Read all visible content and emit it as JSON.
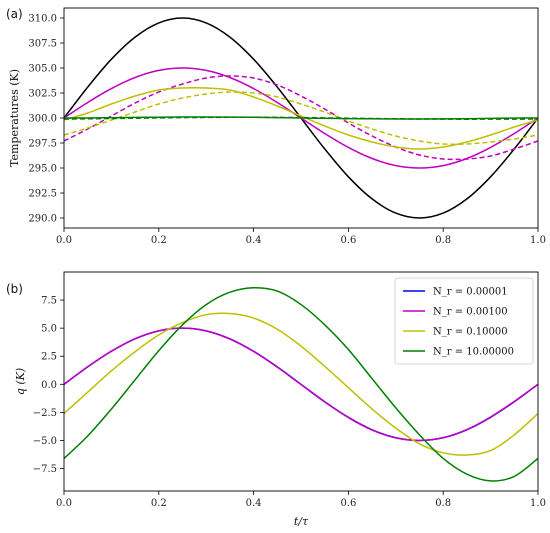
{
  "chart_data": [
    {
      "type": "line",
      "panel_label": "(a)",
      "title": "",
      "xlabel": "",
      "ylabel": "Temperatures (K)",
      "xlim": [
        0.0,
        1.0
      ],
      "ylim": [
        289.0,
        311.0
      ],
      "xticks": [
        "0.0",
        "0.2",
        "0.4",
        "0.6",
        "0.8",
        "1.0"
      ],
      "yticks": [
        "290.0",
        "292.5",
        "295.0",
        "297.5",
        "300.0",
        "302.5",
        "305.0",
        "307.5",
        "310.0"
      ],
      "grid": false,
      "x": [
        0.0,
        0.05,
        0.1,
        0.15,
        0.2,
        0.25,
        0.3,
        0.35,
        0.4,
        0.45,
        0.5,
        0.55,
        0.6,
        0.65,
        0.7,
        0.75,
        0.8,
        0.85,
        0.9,
        0.95,
        1.0
      ],
      "series": [
        {
          "color": "#000000",
          "style": "solid",
          "values": [
            300.0,
            303.09,
            305.88,
            308.09,
            309.51,
            310.0,
            309.51,
            308.09,
            305.88,
            303.09,
            300.0,
            296.91,
            294.12,
            291.91,
            290.49,
            290.0,
            290.49,
            291.91,
            294.12,
            296.91,
            300.0
          ]
        },
        {
          "color": "#bf00bf",
          "style": "solid",
          "values": [
            300.0,
            301.55,
            302.94,
            304.05,
            304.76,
            305.0,
            304.76,
            304.05,
            302.94,
            301.55,
            300.0,
            298.45,
            297.06,
            295.95,
            295.24,
            295.0,
            295.24,
            295.95,
            297.06,
            298.45,
            300.0
          ]
        },
        {
          "color": "#bf00bf",
          "style": "dashed",
          "values": [
            297.7,
            298.9,
            300.2,
            301.5,
            302.6,
            303.4,
            304.0,
            304.2,
            304.0,
            303.3,
            302.2,
            300.9,
            299.5,
            298.2,
            297.1,
            296.3,
            295.9,
            295.9,
            296.2,
            296.9,
            297.7
          ]
        },
        {
          "color": "#bfbf00",
          "style": "solid",
          "values": [
            299.8,
            300.5,
            301.4,
            302.2,
            302.8,
            303.0,
            303.0,
            302.8,
            302.1,
            301.2,
            300.2,
            299.2,
            298.3,
            297.6,
            297.1,
            296.9,
            297.1,
            297.6,
            298.3,
            299.1,
            299.8
          ]
        },
        {
          "color": "#bfbf00",
          "style": "dashed",
          "values": [
            298.3,
            299.0,
            299.8,
            300.6,
            301.4,
            302.0,
            302.4,
            302.6,
            302.5,
            302.1,
            301.4,
            300.6,
            299.7,
            298.9,
            298.2,
            297.7,
            297.4,
            297.4,
            297.6,
            297.9,
            298.3
          ]
        },
        {
          "color": "#007f00",
          "style": "solid",
          "values": [
            300.0,
            300.0,
            300.03,
            300.06,
            300.08,
            300.1,
            300.1,
            300.09,
            300.07,
            300.04,
            300.0,
            299.97,
            299.94,
            299.92,
            299.9,
            299.9,
            299.91,
            299.93,
            299.96,
            299.99,
            300.0
          ]
        },
        {
          "color": "#007f00",
          "style": "dashed",
          "values": [
            299.9,
            299.92,
            299.95,
            299.98,
            300.01,
            300.04,
            300.06,
            300.07,
            300.07,
            300.06,
            300.04,
            300.01,
            299.98,
            299.95,
            299.92,
            299.9,
            299.89,
            299.88,
            299.89,
            299.89,
            299.9
          ]
        }
      ]
    },
    {
      "type": "line",
      "panel_label": "(b)",
      "title": "",
      "xlabel": "t/τ",
      "ylabel": "q (K)",
      "xlim": [
        0.0,
        1.0
      ],
      "ylim": [
        -9.5,
        10.0
      ],
      "xticks": [
        "0.0",
        "0.2",
        "0.4",
        "0.6",
        "0.8",
        "1.0"
      ],
      "yticks": [
        "−7.5",
        "−5.0",
        "−2.5",
        "0.0",
        "2.5",
        "5.0",
        "7.5"
      ],
      "grid": false,
      "legend_position": "top-right",
      "x": [
        0.0,
        0.05,
        0.1,
        0.15,
        0.2,
        0.25,
        0.3,
        0.35,
        0.4,
        0.45,
        0.5,
        0.55,
        0.6,
        0.65,
        0.7,
        0.75,
        0.8,
        0.85,
        0.9,
        0.95,
        1.0
      ],
      "series": [
        {
          "name": "N_r = 0.00001",
          "color": "#0000ff",
          "style": "solid",
          "values": [
            0.0,
            1.55,
            2.94,
            4.05,
            4.76,
            5.0,
            4.76,
            4.05,
            2.94,
            1.55,
            0.0,
            -1.55,
            -2.94,
            -4.05,
            -4.76,
            -5.0,
            -4.76,
            -4.05,
            -2.94,
            -1.55,
            0.0
          ]
        },
        {
          "name": "N_r = 0.00100",
          "color": "#bf00bf",
          "style": "solid",
          "values": [
            0.0,
            1.56,
            2.95,
            4.06,
            4.76,
            5.0,
            4.75,
            4.03,
            2.92,
            1.53,
            -0.02,
            -1.57,
            -2.96,
            -4.07,
            -4.77,
            -5.0,
            -4.75,
            -4.03,
            -2.91,
            -1.52,
            0.0
          ]
        },
        {
          "name": "N_r = 0.10000",
          "color": "#bfbf00",
          "style": "solid",
          "values": [
            -2.6,
            -0.7,
            1.2,
            2.9,
            4.4,
            5.5,
            6.2,
            6.3,
            5.9,
            4.9,
            3.4,
            1.6,
            -0.3,
            -2.2,
            -3.9,
            -5.3,
            -6.1,
            -6.3,
            -5.9,
            -4.5,
            -2.6
          ]
        },
        {
          "name": "N_r = 10.00000",
          "color": "#007f00",
          "style": "solid",
          "values": [
            -6.6,
            -4.6,
            -2.2,
            0.4,
            3.0,
            5.3,
            7.1,
            8.2,
            8.6,
            8.3,
            7.1,
            5.3,
            3.1,
            0.5,
            -2.1,
            -4.5,
            -6.6,
            -8.0,
            -8.6,
            -8.2,
            -6.6
          ]
        }
      ]
    }
  ]
}
